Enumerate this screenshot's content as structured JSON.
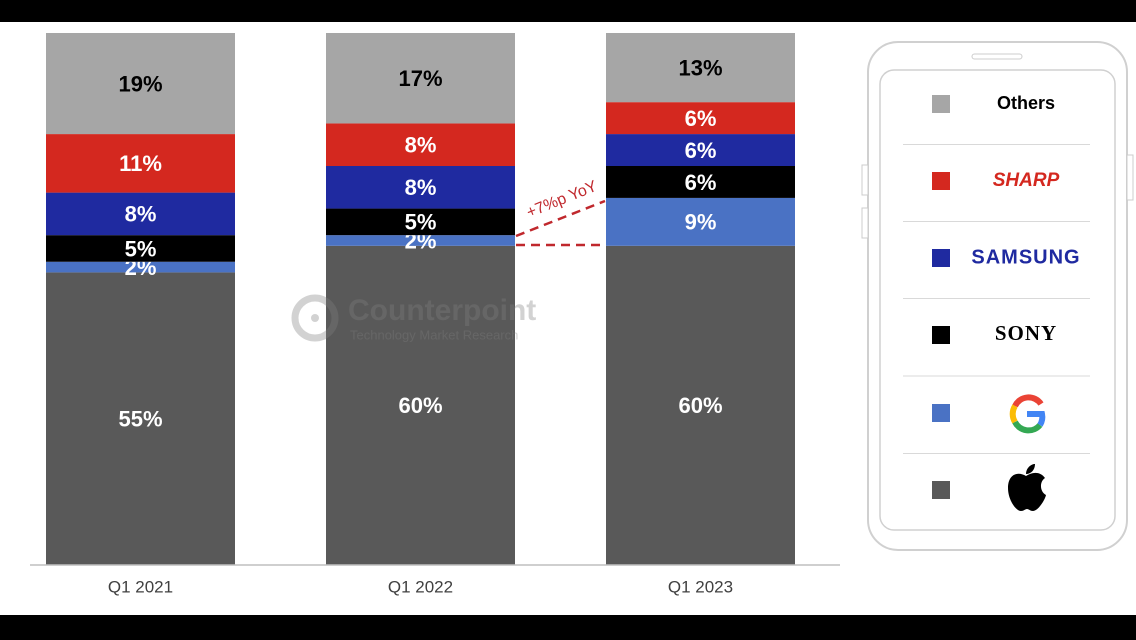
{
  "chart_data": {
    "type": "stacked_bar",
    "categories": [
      "Q1 2021",
      "Q1 2022",
      "Q1 2023"
    ],
    "ylim": [
      0,
      100
    ],
    "series": [
      {
        "color": "#595959",
        "values": [
          55,
          60,
          60
        ],
        "value_labels": [
          "55%",
          "60%",
          "60%"
        ]
      },
      {
        "color": "#4a72c4",
        "values": [
          2,
          2,
          9
        ],
        "value_labels": [
          "2%",
          "2%",
          "9%"
        ]
      },
      {
        "name": "SONY",
        "color": "#000000",
        "values": [
          5,
          5,
          6
        ],
        "value_labels": [
          "5%",
          "5%",
          "6%"
        ]
      },
      {
        "name": "SAMSUNG",
        "color": "#1f2aa0",
        "values": [
          8,
          8,
          6
        ],
        "value_labels": [
          "8%",
          "8%",
          "6%"
        ]
      },
      {
        "name": "SHARP",
        "color": "#d4281f",
        "values": [
          11,
          8,
          6
        ],
        "value_labels": [
          "11%",
          "8%",
          "6%"
        ]
      },
      {
        "name": "Others",
        "color": "#a6a6a6",
        "values": [
          19,
          17,
          13
        ],
        "value_labels": [
          "19%",
          "17%",
          "13%"
        ]
      }
    ],
    "annotation": "+7%p YoY",
    "watermark": {
      "title": "Counterpoint",
      "subtitle": "Technology Market Research"
    }
  }
}
